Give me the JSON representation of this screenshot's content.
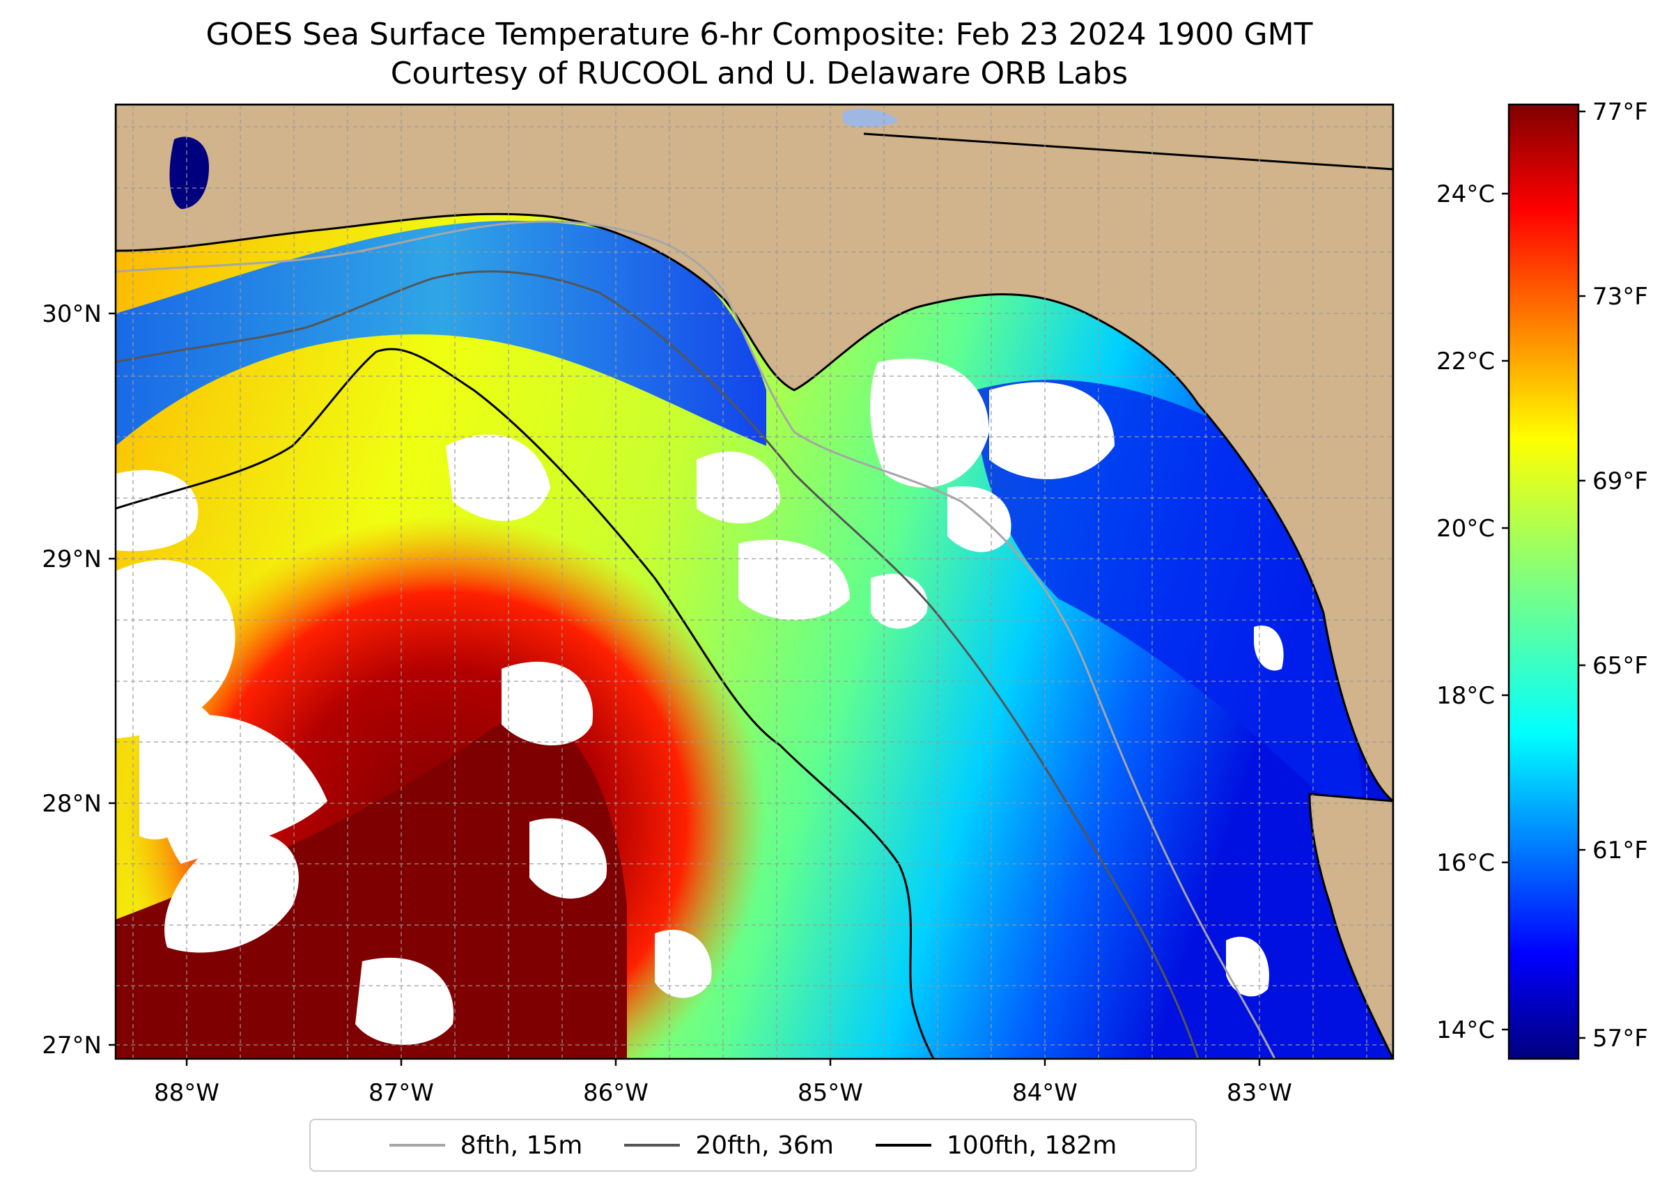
{
  "title_line1": "GOES Sea Surface Temperature 6-hr Composite: Feb 23 2024 1900 GMT",
  "title_line2": "Courtesy of RUCOOL and U. Delaware ORB Labs",
  "map": {
    "lon_ticks": [
      "88°W",
      "87°W",
      "86°W",
      "85°W",
      "84°W",
      "83°W"
    ],
    "lat_ticks": [
      "30°N",
      "29°N",
      "28°N",
      "27°N"
    ],
    "land_color": "#d2b48c",
    "no_data_color": "#ffffff"
  },
  "colorbar": {
    "celsius_ticks": [
      "24°C",
      "22°C",
      "20°C",
      "18°C",
      "16°C",
      "14°C"
    ],
    "fahrenheit_ticks": [
      "77°F",
      "73°F",
      "69°F",
      "65°F",
      "61°F",
      "57°F"
    ],
    "colormap": "jet"
  },
  "legend": [
    {
      "label": "8fth, 15m",
      "color": "#a6a6a6"
    },
    {
      "label": "20fth, 36m",
      "color": "#555555"
    },
    {
      "label": "100fth, 182m",
      "color": "#000000"
    }
  ]
}
